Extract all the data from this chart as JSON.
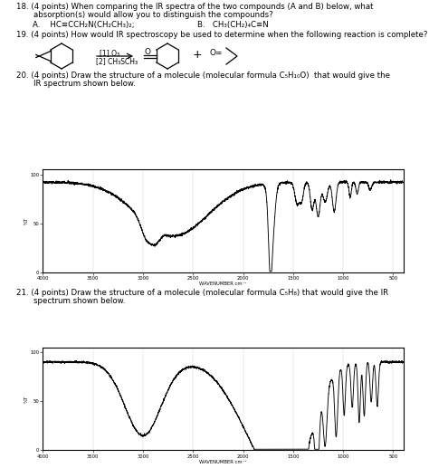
{
  "bg_color": "#ffffff",
  "text_color": "#000000",
  "q18_line1": "18. (4 points) When comparing the IR spectra of the two compounds (A and B) below, what",
  "q18_line2": "    absorption(s) would allow you to distinguish the compounds?",
  "q18_A": "A.    HC≡CCH₂N(CH₂CH₃)₂;",
  "q18_B": "B.   CH₃(CH₂)₄C≡N",
  "q19_text": "19. (4 points) How would IR spectroscopy be used to determine when the following reaction is complete?",
  "q19_r1": "[1] O₃",
  "q19_r2": "[2] CH₃SCH₃",
  "q20_line1": "20. (4 points) Draw the structure of a molecule (molecular formula C₅H₁₀O)  that would give the",
  "q20_line2": "    IR spectrum shown below.",
  "q21_line1": "21. (4 points) Draw the structure of a molecule (molecular formula C₅H₈) that would give the IR",
  "q21_line2": "    spectrum shown below.",
  "spec1_seed": 42,
  "spec2_seed": 99,
  "xtick_labels": [
    "4000",
    "3500",
    "3000",
    "2500",
    "2000",
    "1500",
    "1000",
    "500"
  ],
  "xtick_vals": [
    4000,
    3500,
    3000,
    2500,
    2000,
    1500,
    1000,
    500
  ],
  "ytick_labels": [
    "0",
    "50",
    "100"
  ],
  "ytick_vals": [
    0,
    50,
    100
  ],
  "xlabel": "WAVENUMBER cm⁻¹",
  "ylabel": "%T"
}
